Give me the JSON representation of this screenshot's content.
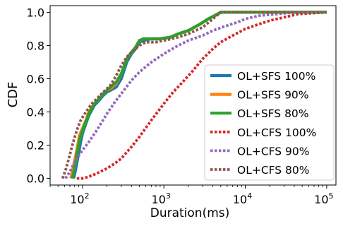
{
  "chart_data": {
    "type": "line",
    "title": "",
    "xlabel": "Duration(ms)",
    "ylabel": "CDF",
    "xscale": "log",
    "xlim": [
      40,
      130000
    ],
    "ylim": [
      -0.04,
      1.04
    ],
    "x_ticks": [
      {
        "value": 100,
        "base": "10",
        "exp": "2"
      },
      {
        "value": 1000,
        "base": "10",
        "exp": "3"
      },
      {
        "value": 10000,
        "base": "10",
        "exp": "4"
      },
      {
        "value": 100000,
        "base": "10",
        "exp": "5"
      }
    ],
    "y_ticks": [
      {
        "value": 0.0,
        "label": "0.0"
      },
      {
        "value": 0.2,
        "label": "0.2"
      },
      {
        "value": 0.4,
        "label": "0.4"
      },
      {
        "value": 0.6,
        "label": "0.6"
      },
      {
        "value": 0.8,
        "label": "0.8"
      },
      {
        "value": 1.0,
        "label": "1.0"
      }
    ],
    "grid": false,
    "legend_position": "bottom-right",
    "series": [
      {
        "name": "OL+SFS 100%",
        "color": "#1f77b4",
        "style": "solid",
        "x": [
          78,
          82,
          88,
          95,
          100,
          110,
          120,
          140,
          160,
          180,
          200,
          220,
          260,
          300,
          350,
          400,
          450,
          500,
          560,
          700,
          900,
          1200,
          1500,
          2000,
          2800,
          3500,
          4200,
          5000,
          8000,
          20000,
          100000
        ],
        "y": [
          0.0,
          0.05,
          0.13,
          0.22,
          0.27,
          0.33,
          0.38,
          0.44,
          0.47,
          0.5,
          0.52,
          0.53,
          0.55,
          0.6,
          0.7,
          0.75,
          0.78,
          0.82,
          0.83,
          0.84,
          0.84,
          0.85,
          0.87,
          0.89,
          0.93,
          0.96,
          0.98,
          1.0,
          1.0,
          1.0,
          1.0
        ]
      },
      {
        "name": "OL+SFS 90%",
        "color": "#ff7f0e",
        "style": "solid",
        "x": [
          72,
          78,
          85,
          92,
          100,
          110,
          120,
          140,
          160,
          180,
          200,
          220,
          260,
          300,
          350,
          400,
          450,
          500,
          560,
          700,
          900,
          1200,
          1500,
          2000,
          2800,
          3500,
          4200,
          5000,
          8000,
          20000,
          100000
        ],
        "y": [
          0.0,
          0.08,
          0.17,
          0.26,
          0.3,
          0.35,
          0.4,
          0.45,
          0.48,
          0.51,
          0.53,
          0.54,
          0.57,
          0.63,
          0.72,
          0.76,
          0.79,
          0.83,
          0.84,
          0.84,
          0.84,
          0.85,
          0.87,
          0.89,
          0.93,
          0.96,
          0.98,
          1.0,
          1.0,
          1.0,
          1.0
        ]
      },
      {
        "name": "OL+SFS 80%",
        "color": "#2ca02c",
        "style": "solid",
        "x": [
          75,
          80,
          86,
          93,
          100,
          110,
          120,
          140,
          160,
          180,
          200,
          220,
          260,
          300,
          350,
          400,
          450,
          500,
          560,
          700,
          900,
          1200,
          1500,
          2000,
          2800,
          3500,
          4200,
          5000,
          8000,
          20000,
          100000
        ],
        "y": [
          0.0,
          0.06,
          0.15,
          0.24,
          0.29,
          0.34,
          0.39,
          0.45,
          0.48,
          0.51,
          0.53,
          0.55,
          0.58,
          0.63,
          0.72,
          0.76,
          0.79,
          0.83,
          0.84,
          0.84,
          0.84,
          0.85,
          0.87,
          0.89,
          0.93,
          0.96,
          0.98,
          1.0,
          1.0,
          1.0,
          1.0
        ]
      },
      {
        "name": "OL+CFS 100%",
        "color": "#d62728",
        "style": "dotted",
        "x": [
          85,
          100,
          120,
          150,
          200,
          250,
          300,
          400,
          500,
          700,
          1000,
          1300,
          1700,
          2200,
          3000,
          4000,
          5000,
          7000,
          10000,
          15000,
          20000,
          30000,
          45000,
          100000
        ],
        "y": [
          0.0,
          0.0,
          0.01,
          0.03,
          0.06,
          0.09,
          0.12,
          0.19,
          0.25,
          0.35,
          0.45,
          0.52,
          0.58,
          0.64,
          0.72,
          0.78,
          0.82,
          0.86,
          0.9,
          0.93,
          0.95,
          0.97,
          0.99,
          1.0
        ]
      },
      {
        "name": "OL+CFS 90%",
        "color": "#9467bd",
        "style": "dotted",
        "x": [
          62,
          70,
          80,
          100,
          120,
          150,
          200,
          250,
          300,
          400,
          500,
          700,
          1000,
          1500,
          2000,
          3000,
          4000,
          6000,
          8000,
          10000,
          15000,
          25000,
          40000,
          100000
        ],
        "y": [
          0.0,
          0.04,
          0.1,
          0.17,
          0.22,
          0.29,
          0.39,
          0.46,
          0.51,
          0.59,
          0.64,
          0.7,
          0.75,
          0.8,
          0.83,
          0.86,
          0.89,
          0.92,
          0.94,
          0.96,
          0.98,
          0.99,
          1.0,
          1.0
        ]
      },
      {
        "name": "OL+CFS 80%",
        "color": "#8c564b",
        "style": "dotted",
        "x": [
          57,
          62,
          68,
          75,
          85,
          95,
          110,
          130,
          150,
          180,
          220,
          260,
          300,
          350,
          400,
          500,
          600,
          800,
          1000,
          1500,
          2000,
          3000,
          4000,
          5000,
          10000,
          100000
        ],
        "y": [
          0.0,
          0.05,
          0.12,
          0.2,
          0.29,
          0.35,
          0.4,
          0.45,
          0.48,
          0.52,
          0.56,
          0.62,
          0.68,
          0.73,
          0.76,
          0.8,
          0.82,
          0.82,
          0.83,
          0.85,
          0.87,
          0.91,
          0.96,
          1.0,
          1.0,
          1.0
        ]
      }
    ]
  }
}
